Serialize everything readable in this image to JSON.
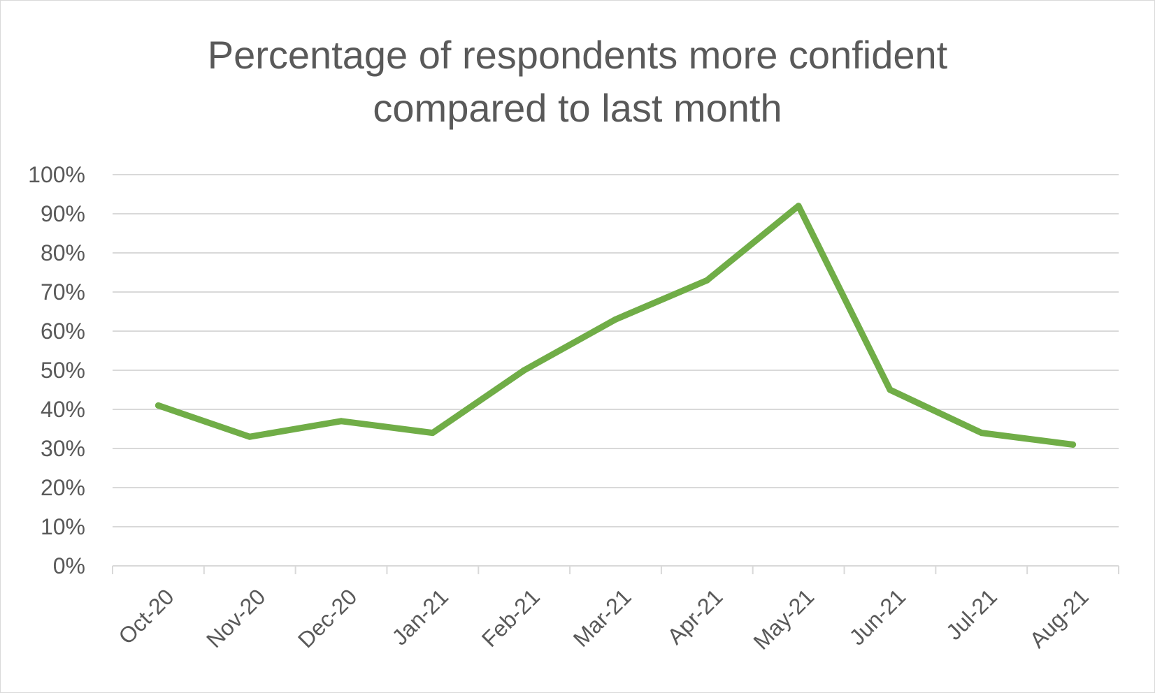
{
  "chart_data": {
    "type": "line",
    "title_line1": "Percentage of respondents more confident",
    "title_line2": "compared to last month",
    "categories": [
      "Oct-20",
      "Nov-20",
      "Dec-20",
      "Jan-21",
      "Feb-21",
      "Mar-21",
      "Apr-21",
      "May-21",
      "Jun-21",
      "Jul-21",
      "Aug-21"
    ],
    "series": [
      {
        "values": [
          41,
          33,
          37,
          34,
          50,
          63,
          73,
          92,
          45,
          34,
          31
        ]
      }
    ],
    "ylim": [
      0,
      100
    ],
    "yticks": [
      0,
      10,
      20,
      30,
      40,
      50,
      60,
      70,
      80,
      90,
      100
    ],
    "ytick_labels": [
      "0%",
      "10%",
      "20%",
      "30%",
      "40%",
      "50%",
      "60%",
      "70%",
      "80%",
      "90%",
      "100%"
    ],
    "grid": true,
    "legend": "none",
    "colors": {
      "line": "#70ad47",
      "grid": "#d9d9d9",
      "text": "#595959"
    }
  }
}
